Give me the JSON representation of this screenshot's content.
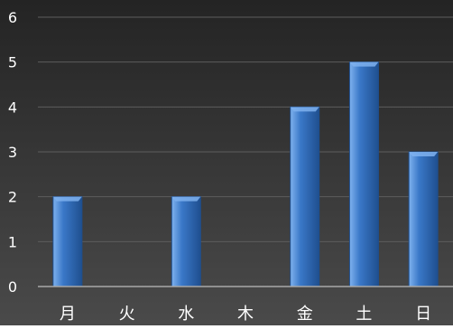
{
  "chart_data": {
    "type": "bar",
    "title": "",
    "xlabel": "",
    "ylabel": "",
    "categories": [
      "月",
      "火",
      "水",
      "木",
      "金",
      "土",
      "日"
    ],
    "values": [
      2,
      0,
      2,
      0,
      4,
      5,
      3
    ],
    "ylim": [
      0,
      6
    ],
    "yticks": [
      0,
      1,
      2,
      3,
      4,
      5,
      6
    ],
    "grid": true,
    "legend": "none",
    "colors": {
      "bar": "#3a78c8",
      "bar_highlight": "#7fb2ee",
      "bar_shadow": "#1f4f8f",
      "background_top": "#242424",
      "background_bottom": "#4a4a4a",
      "grid": "#5d5d5d",
      "axis_line": "#a8a8a8",
      "text": "#ffffff"
    }
  }
}
